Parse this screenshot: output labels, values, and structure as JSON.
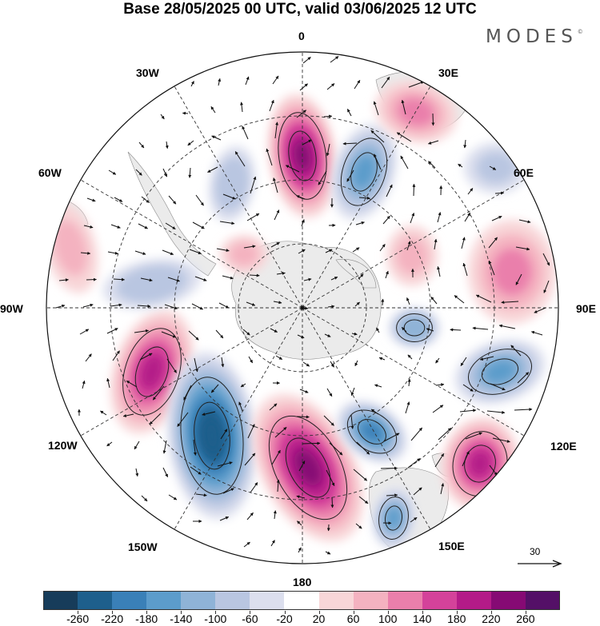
{
  "title": "Base 28/05/2025 00 UTC, valid 03/06/2025 12 UTC",
  "brand": "MODES",
  "brand_mark": "©",
  "longitude_labels": [
    "0",
    "30E",
    "60E",
    "90E",
    "120E",
    "150E",
    "180",
    "150W",
    "120W",
    "90W",
    "60W",
    "30W"
  ],
  "projection": "south-polar-stereographic",
  "vector_reference": {
    "value": "30",
    "icon": "arrow-right-icon"
  },
  "colorbar": {
    "tick_labels": [
      "-260",
      "-220",
      "-180",
      "-140",
      "-100",
      "-60",
      "-20",
      "20",
      "60",
      "100",
      "140",
      "180",
      "220",
      "260"
    ],
    "colors": [
      "#173c5a",
      "#1e5f8c",
      "#3a80b8",
      "#5c9ccb",
      "#8fb3d7",
      "#b9c6e1",
      "#dcdfee",
      "#ffffff",
      "#f8d6d8",
      "#f4b2c0",
      "#ea7fab",
      "#d4429a",
      "#b41b88",
      "#860a74",
      "#541067"
    ]
  },
  "anomalies": [
    {
      "id": "anom-a",
      "sign": "positive",
      "magnitude": 240
    },
    {
      "id": "anom-b",
      "sign": "negative",
      "magnitude": 160
    },
    {
      "id": "anom-c",
      "sign": "negative",
      "magnitude": 100
    },
    {
      "id": "anom-d",
      "sign": "positive",
      "magnitude": 180
    },
    {
      "id": "anom-e",
      "sign": "negative",
      "magnitude": 260
    },
    {
      "id": "anom-f",
      "sign": "positive",
      "magnitude": 240
    },
    {
      "id": "anom-g",
      "sign": "negative",
      "magnitude": 200
    },
    {
      "id": "anom-h",
      "sign": "negative",
      "magnitude": 160
    },
    {
      "id": "anom-i",
      "sign": "positive",
      "magnitude": 180
    },
    {
      "id": "anom-j",
      "sign": "negative",
      "magnitude": 140
    },
    {
      "id": "anom-k",
      "sign": "negative",
      "magnitude": 160
    },
    {
      "id": "anom-l",
      "sign": "positive",
      "magnitude": 100
    },
    {
      "id": "anom-m",
      "sign": "positive",
      "magnitude": 80
    },
    {
      "id": "anom-n",
      "sign": "positive",
      "magnitude": 100
    },
    {
      "id": "anom-o",
      "sign": "negative",
      "magnitude": 80
    },
    {
      "id": "anom-p",
      "sign": "positive",
      "magnitude": 70
    },
    {
      "id": "anom-q",
      "sign": "negative",
      "magnitude": 100
    },
    {
      "id": "anom-r",
      "sign": "positive",
      "magnitude": 60
    }
  ]
}
